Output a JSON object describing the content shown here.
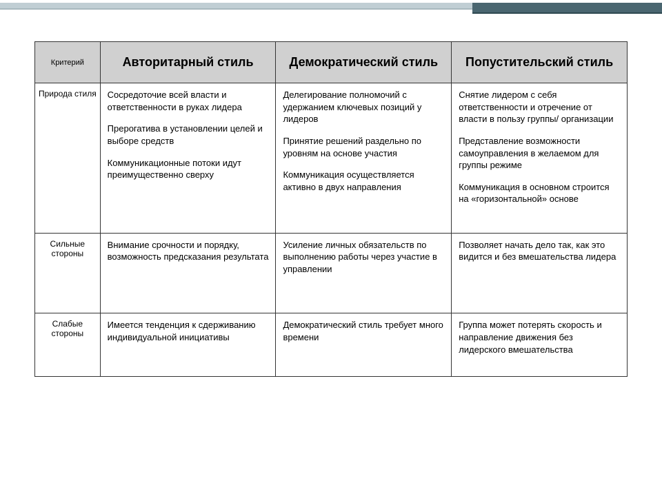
{
  "table": {
    "header": {
      "criteria": "Критерий",
      "col1": "Авторитарный стиль",
      "col2": "Демократический стиль",
      "col3": "Попустительский стиль"
    },
    "rows": [
      {
        "criteria": "Природа стиля",
        "col1": {
          "p1": "Сосредоточие всей власти и ответственности в руках лидера",
          "p2": "Прерогатива в установлении целей и выборе средств",
          "p3": "Коммуникационные потоки идут преимущественно сверху"
        },
        "col2": {
          "p1": "Делегирование полномочий с удержанием ключевых позиций у лидеров",
          "p2": "Принятие решений раздельно по уровням на основе участия",
          "p3": "Коммуникация осуществляется активно в двух направления"
        },
        "col3": {
          "p1": "Снятие лидером с себя ответственности и отречение от власти в пользу группы/ организации",
          "p2": "Представление возможности самоуправления в желаемом для группы режиме",
          "p3": "Коммуникация в основном строится на «горизонтальной» основе"
        }
      },
      {
        "criteria": "Сильные стороны",
        "col1": {
          "p1": "Внимание срочности и порядку, возможность предсказания результата"
        },
        "col2": {
          "p1": "Усиление личных обязательств по выполнению работы через участие в управлении"
        },
        "col3": {
          "p1": "Позволяет начать дело так, как это видится и без вмешательства лидера"
        }
      },
      {
        "criteria": "Слабые стороны",
        "col1": {
          "p1": "Имеется тенденция к сдерживанию индивидуальной инициативы"
        },
        "col2": {
          "p1": "Демократический стиль требует много времени"
        },
        "col3": {
          "p1": "Группа может потерять скорость и направление движения без лидерского вмешательства"
        }
      }
    ]
  }
}
